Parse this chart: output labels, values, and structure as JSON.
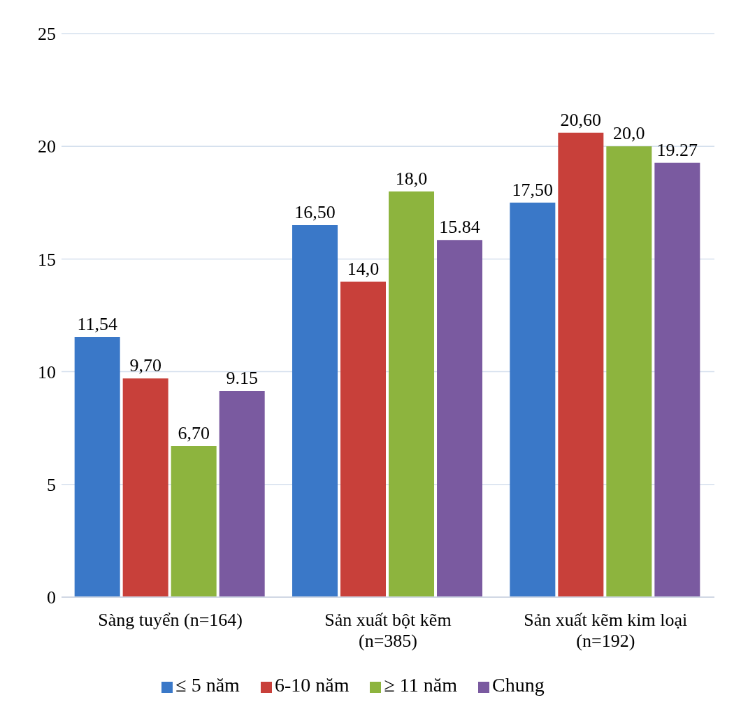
{
  "chart_data": {
    "type": "bar",
    "categories": [
      "Sàng tuyển (n=164)",
      "Sản xuất bột kẽm (n=385)",
      "Sản xuất kẽm kim loại (n=192)"
    ],
    "series": [
      {
        "name": "≤ 5 năm",
        "color": "#3a78c8",
        "values": [
          11.54,
          16.5,
          17.5
        ],
        "value_labels": [
          "11,54",
          "16,50",
          "17,50"
        ]
      },
      {
        "name": "6-10 năm",
        "color": "#c8403a",
        "values": [
          9.7,
          14.0,
          20.6
        ],
        "value_labels": [
          "9,70",
          "14,0",
          "20,60"
        ]
      },
      {
        "name": "≥ 11 năm",
        "color": "#8db43e",
        "values": [
          6.7,
          18.0,
          20.0
        ],
        "value_labels": [
          "6,70",
          "18,0",
          "20,0"
        ]
      },
      {
        "name": "Chung",
        "color": "#7a5aa0",
        "values": [
          9.15,
          15.84,
          19.27
        ],
        "value_labels": [
          "9.15",
          "15.84",
          "19.27"
        ]
      }
    ],
    "ylim": [
      0,
      25
    ],
    "yticks": [
      0,
      5,
      10,
      15,
      20,
      25
    ],
    "grid": "y",
    "legend": "bottom"
  }
}
